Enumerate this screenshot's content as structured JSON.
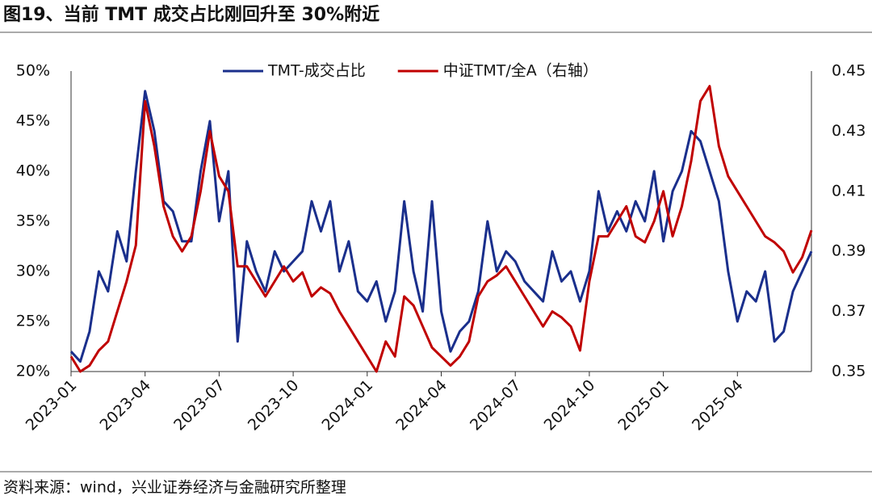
{
  "chart_data": {
    "type": "line",
    "title": "图19、当前 TMT 成交占比刚回升至 30%附近",
    "source": "资料来源：wind，兴业证券经济与金融研究所整理",
    "categories": [
      "2023-01",
      null,
      null,
      null,
      null,
      null,
      null,
      null,
      "2023-04",
      null,
      null,
      null,
      null,
      null,
      null,
      null,
      "2023-07",
      null,
      null,
      null,
      null,
      null,
      null,
      null,
      "2023-10",
      null,
      null,
      null,
      null,
      null,
      null,
      null,
      "2024-01",
      null,
      null,
      null,
      null,
      null,
      null,
      null,
      "2024-04",
      null,
      null,
      null,
      null,
      null,
      null,
      null,
      "2024-07",
      null,
      null,
      null,
      null,
      null,
      null,
      null,
      "2024-10",
      null,
      null,
      null,
      null,
      null,
      null,
      null,
      "2025-01",
      null,
      null,
      null,
      null,
      null,
      null,
      null,
      "2025-04",
      null,
      null,
      null,
      null,
      null,
      null,
      null,
      null
    ],
    "series": [
      {
        "name": "TMT-成交占比",
        "color": "#1a2f8c",
        "values": [
          22,
          21,
          24,
          30,
          28,
          34,
          31,
          40,
          48,
          44,
          37,
          36,
          33,
          33,
          40,
          45,
          35,
          40,
          23,
          33,
          30,
          28,
          32,
          30,
          31,
          32,
          37,
          34,
          37,
          30,
          33,
          28,
          27,
          29,
          25,
          28,
          37,
          30,
          26,
          37,
          26,
          22,
          24,
          25,
          28,
          35,
          30,
          32,
          31,
          29,
          28,
          27,
          32,
          29,
          30,
          27,
          30,
          38,
          34,
          36,
          34,
          37,
          35,
          40,
          33,
          38,
          40,
          44,
          43,
          40,
          37,
          30,
          25,
          28,
          27,
          30,
          23,
          24,
          28,
          30,
          32
        ]
      },
      {
        "name": "中证TMT/全A（右轴）",
        "color": "#c00000",
        "axis": "y2",
        "values": [
          0.355,
          0.35,
          0.352,
          0.357,
          0.36,
          0.37,
          0.38,
          0.392,
          0.44,
          0.425,
          0.405,
          0.395,
          0.39,
          0.395,
          0.41,
          0.43,
          0.415,
          0.41,
          0.385,
          0.385,
          0.38,
          0.375,
          0.38,
          0.385,
          0.38,
          0.383,
          0.375,
          0.378,
          0.376,
          0.37,
          0.365,
          0.36,
          0.355,
          0.35,
          0.36,
          0.355,
          0.375,
          0.372,
          0.365,
          0.358,
          0.355,
          0.352,
          0.355,
          0.36,
          0.375,
          0.38,
          0.382,
          0.385,
          0.38,
          0.375,
          0.37,
          0.365,
          0.37,
          0.368,
          0.365,
          0.357,
          0.38,
          0.395,
          0.395,
          0.4,
          0.405,
          0.395,
          0.393,
          0.4,
          0.41,
          0.395,
          0.405,
          0.42,
          0.44,
          0.445,
          0.425,
          0.415,
          0.41,
          0.405,
          0.4,
          0.395,
          0.393,
          0.39,
          0.383,
          0.388,
          0.397
        ]
      }
    ],
    "ylim": [
      20,
      50
    ],
    "yticks": [
      {
        "value": 20,
        "label": "20%"
      },
      {
        "value": 25,
        "label": "25%"
      },
      {
        "value": 30,
        "label": "30%"
      },
      {
        "value": 35,
        "label": "35%"
      },
      {
        "value": 40,
        "label": "40%"
      },
      {
        "value": 45,
        "label": "45%"
      },
      {
        "value": 50,
        "label": "50%"
      }
    ],
    "y2lim": [
      0.35,
      0.45
    ],
    "y2ticks": [
      0.35,
      0.37,
      0.39,
      0.41,
      0.43,
      0.45
    ],
    "grid": false,
    "legend": "top"
  }
}
